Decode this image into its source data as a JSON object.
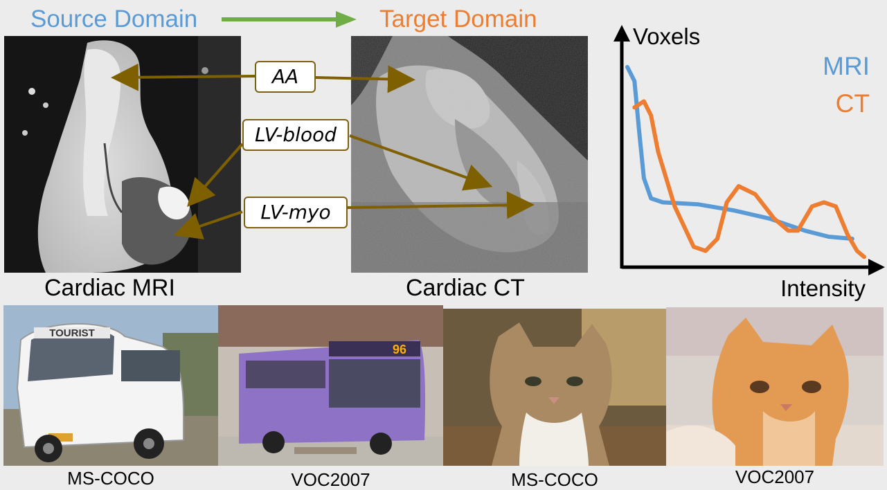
{
  "header": {
    "source_label": "Source Domain",
    "target_label": "Target Domain",
    "source_color": "#5b9bd5",
    "target_color": "#ed7d31",
    "arrow_color": "#70ad47"
  },
  "cardiac": {
    "mri_caption": "Cardiac MRI",
    "ct_caption": "Cardiac CT",
    "labels": {
      "aa": "AA",
      "lv_blood": "LV-blood",
      "lv_myo": "LV-myo"
    },
    "arrow_color": "#7f6000"
  },
  "chart_data": {
    "type": "line",
    "ylabel": "Voxels",
    "xlabel": "Intensity",
    "axis_ticks": "none",
    "series": [
      {
        "name": "MRI",
        "color": "#5b9bd5",
        "x": [
          0.0,
          0.03,
          0.05,
          0.07,
          0.1,
          0.15,
          0.3,
          0.45,
          0.6,
          0.75,
          0.85,
          0.95
        ],
        "y": [
          0.97,
          0.9,
          0.65,
          0.42,
          0.32,
          0.3,
          0.29,
          0.26,
          0.22,
          0.16,
          0.13,
          0.12
        ]
      },
      {
        "name": "CT",
        "color": "#ed7d31",
        "x": [
          0.03,
          0.07,
          0.1,
          0.13,
          0.2,
          0.28,
          0.33,
          0.38,
          0.42,
          0.47,
          0.54,
          0.62,
          0.68,
          0.72,
          0.78,
          0.83,
          0.88,
          0.93,
          0.97,
          1.0
        ],
        "y": [
          0.77,
          0.8,
          0.73,
          0.55,
          0.28,
          0.08,
          0.06,
          0.12,
          0.3,
          0.38,
          0.34,
          0.22,
          0.16,
          0.16,
          0.28,
          0.3,
          0.28,
          0.14,
          0.06,
          0.03
        ]
      }
    ]
  },
  "datasets": [
    {
      "caption": "MS-COCO",
      "subject": "bus"
    },
    {
      "caption": "VOC2007",
      "subject": "bus"
    },
    {
      "caption": "MS-COCO",
      "subject": "cat"
    },
    {
      "caption": "VOC2007",
      "subject": "cat"
    }
  ],
  "bus_photos": {
    "coco_sign": "TOURIST",
    "voc_route": "96"
  }
}
